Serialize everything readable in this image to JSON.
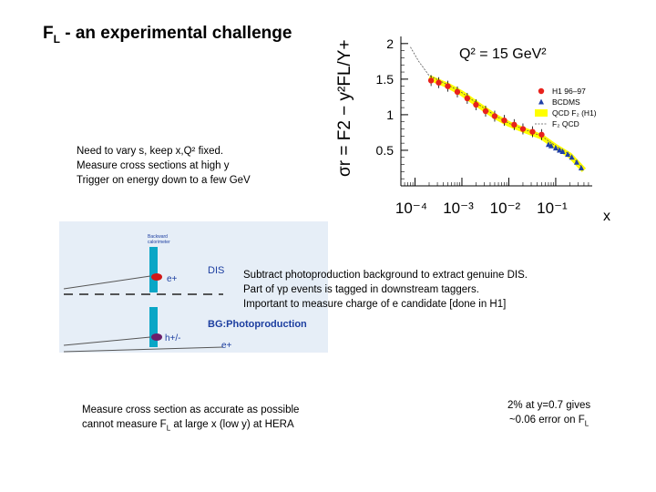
{
  "slide": {
    "title_main": "F",
    "title_sub": "L",
    "title_rest": " - an experimental challenge"
  },
  "notes": {
    "vary": [
      "Need to vary s, keep x,Q² fixed.",
      "Measure cross sections at high y",
      "Trigger  on energy down to a few GeV"
    ],
    "subtract": [
      "Subtract photoproduction background to extract genuine DIS.",
      "Part of γp events is tagged in downstream taggers.",
      "Important to measure charge of e candidate [done in H1]"
    ],
    "accuracy_line1": "Measure cross section as accurate as possible",
    "accuracy_line2_pre": "cannot measure F",
    "accuracy_line2_sub": "L",
    "accuracy_line2_post": " at large x (low y) at HERA",
    "error_line1": "2% at y=0.7 gives",
    "error_line2_pre": "~0.06 error on F",
    "error_line2_sub": "L"
  },
  "chart_data": {
    "type": "scatter",
    "title": "Q² = 15 GeV²",
    "ylabel": "σr = F2 − y²FL/Y+",
    "xlabel": "x",
    "x_scale": "log",
    "xlim": [
      5e-05,
      0.6
    ],
    "ylim": [
      0,
      2.1
    ],
    "x_ticks": [
      {
        "value": 0.0001,
        "label": "10⁻⁴"
      },
      {
        "value": 0.001,
        "label": "10⁻³"
      },
      {
        "value": 0.01,
        "label": "10⁻²"
      },
      {
        "value": 0.1,
        "label": "10⁻¹"
      }
    ],
    "y_ticks": [
      {
        "value": 0.5,
        "label": "0.5"
      },
      {
        "value": 1,
        "label": "1"
      },
      {
        "value": 1.5,
        "label": "1.5"
      },
      {
        "value": 2,
        "label": "2"
      }
    ],
    "legend_position": "top-right",
    "legend": [
      "H1 96–97",
      "BCDMS",
      "QCD F₂ (H1)",
      "F₂ QCD"
    ],
    "series": [
      {
        "name": "H1 96–97",
        "marker": "circle",
        "color": "#e8221c",
        "x": [
          0.00022,
          0.00032,
          0.0005,
          0.0008,
          0.0013,
          0.002,
          0.0032,
          0.005,
          0.008,
          0.013,
          0.02,
          0.032,
          0.05
        ],
        "y": [
          1.48,
          1.45,
          1.4,
          1.32,
          1.23,
          1.14,
          1.05,
          0.98,
          0.92,
          0.86,
          0.8,
          0.76,
          0.72
        ]
      },
      {
        "name": "BCDMS",
        "marker": "triangle",
        "color": "#1f3fa8",
        "x": [
          0.07,
          0.08,
          0.1,
          0.12,
          0.14,
          0.18,
          0.22,
          0.28,
          0.35
        ],
        "y": [
          0.58,
          0.56,
          0.53,
          0.5,
          0.48,
          0.44,
          0.4,
          0.33,
          0.25
        ]
      },
      {
        "name": "QCD F₂ (H1)",
        "marker": "band",
        "color": "#ffff00",
        "x": [
          0.0002,
          0.0005,
          0.001,
          0.002,
          0.005,
          0.01,
          0.02,
          0.05,
          0.1,
          0.2,
          0.4
        ],
        "y": [
          1.52,
          1.41,
          1.3,
          1.16,
          0.98,
          0.87,
          0.79,
          0.69,
          0.55,
          0.43,
          0.22
        ]
      },
      {
        "name": "F₂ QCD",
        "marker": "line",
        "color": "#555555",
        "x": [
          8e-05,
          0.00012,
          0.0002,
          0.0005,
          0.001,
          0.002,
          0.005,
          0.01,
          0.02,
          0.05,
          0.1,
          0.2,
          0.4
        ],
        "y": [
          1.95,
          1.75,
          1.55,
          1.42,
          1.31,
          1.17,
          0.99,
          0.88,
          0.8,
          0.7,
          0.56,
          0.44,
          0.23
        ]
      }
    ]
  },
  "tag_figure": {
    "detector_label_1": "Backward",
    "detector_label_2": "calorimeter",
    "dis_label": "DIS",
    "dis_particle": "e+",
    "bg_label": "BG:Photoproduction",
    "bg_particle_1": "h+/-",
    "bg_particle_2": "e+",
    "colors": {
      "calorimeter": "#0aa6c6",
      "electron": "#d01818",
      "hadron": "#6b1f6b",
      "text_blue": "#1c3ea0",
      "background": "#e6eef7"
    }
  }
}
